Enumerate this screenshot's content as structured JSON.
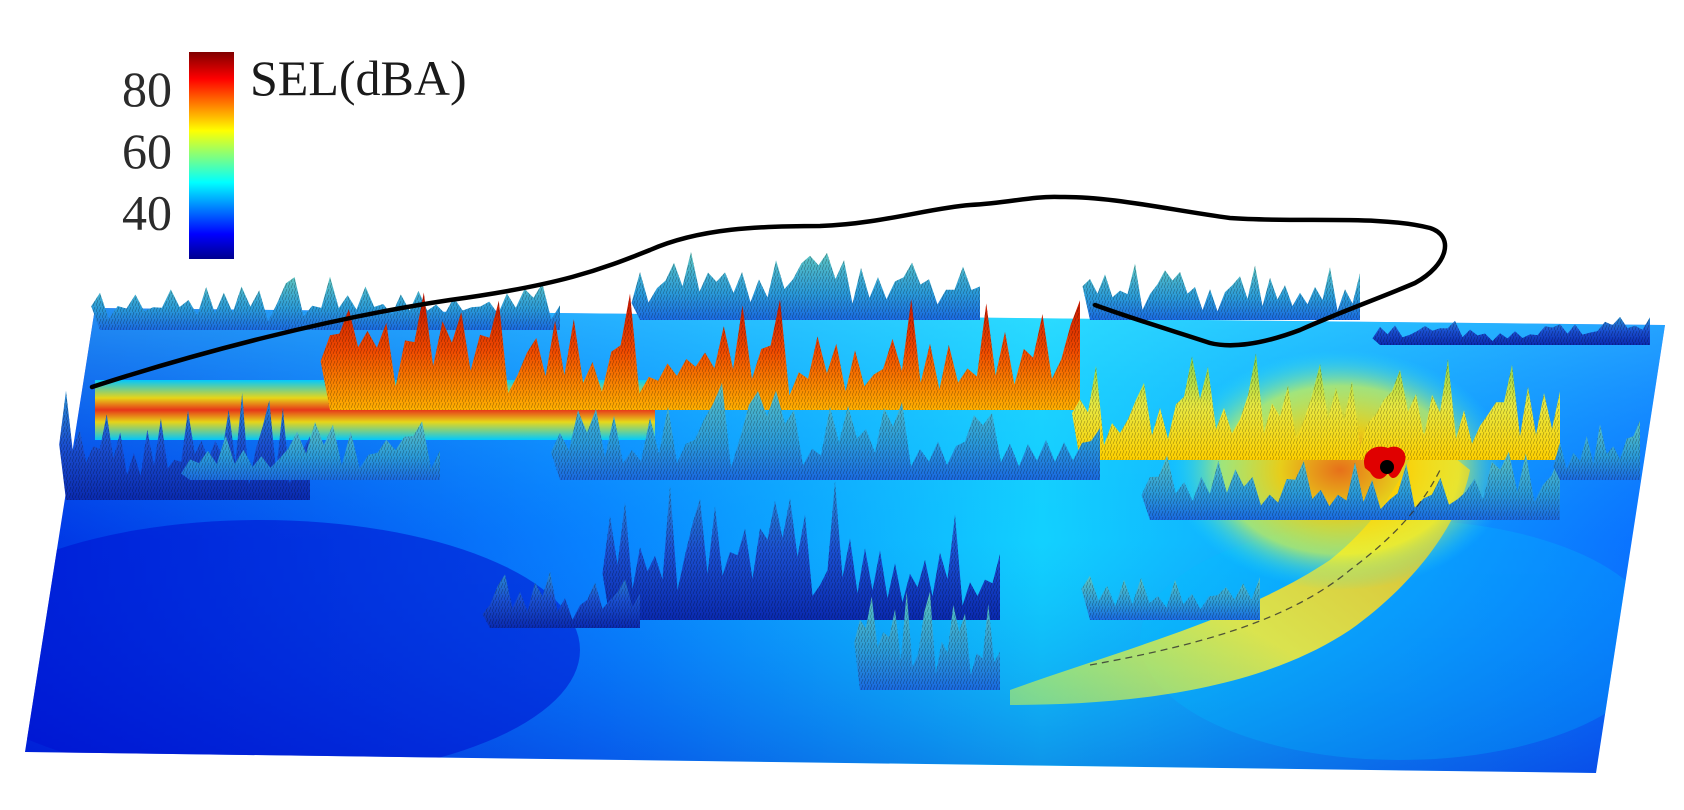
{
  "chart_data": {
    "type": "heatmap",
    "title": "",
    "xlabel": "",
    "ylabel": "",
    "colorbar": {
      "label": "SEL(dBA)",
      "ticks": [
        80,
        60,
        40
      ],
      "range": [
        25,
        92
      ],
      "colormap": "jet",
      "placement": "top-left"
    },
    "surface": "3D terrain with SEL noise map overlay",
    "annotations": [
      "flight track (black line)",
      "source position (black dot)"
    ],
    "grid": false
  },
  "colors": {
    "low": "#00008f",
    "mid": "#00ffff",
    "high": "#ffff00",
    "peak": "#c00000",
    "track": "#000000"
  }
}
